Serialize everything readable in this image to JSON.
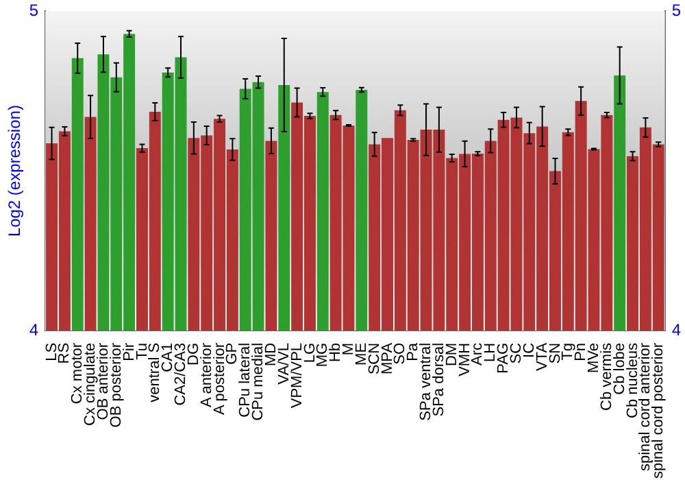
{
  "chart_data": {
    "type": "bar",
    "ylabel": "Log2 (expression)",
    "categories": [
      "LS",
      "RS",
      "Cx motor",
      "Cx cingulate",
      "OB anterior",
      "OB posterior",
      "Pir",
      "Tu",
      "ventral S",
      "CA1",
      "CA2/CA3",
      "DG",
      "A anterior",
      "A posterior",
      "GP",
      "CPu lateral",
      "CPu medial",
      "MD",
      "VA/VL",
      "VPM/VPL",
      "LG",
      "MG",
      "Hb",
      "M",
      "ME",
      "SCN",
      "MPA",
      "SO",
      "Pa",
      "SPa ventral",
      "SPa dorsal",
      "DM",
      "VMH",
      "Arc",
      "LH",
      "PAG",
      "SC",
      "IC",
      "VTA",
      "SN",
      "Tg",
      "Pn",
      "MVe",
      "Cb vermis",
      "Cb lobe",
      "Cb nucleus",
      "spinal cord anterior",
      "spinal cord posterior"
    ],
    "values": [
      4.586,
      4.624,
      4.853,
      4.669,
      4.865,
      4.793,
      4.929,
      4.571,
      4.685,
      4.808,
      4.856,
      4.603,
      4.611,
      4.663,
      4.567,
      4.757,
      4.778,
      4.594,
      4.769,
      4.714,
      4.672,
      4.747,
      4.675,
      4.642,
      4.754,
      4.583,
      4.603,
      4.69,
      4.597,
      4.629,
      4.629,
      4.54,
      4.553,
      4.554,
      4.594,
      4.66,
      4.667,
      4.618,
      4.639,
      4.499,
      4.621,
      4.719,
      4.568,
      4.675,
      4.799,
      4.546,
      4.636,
      4.583
    ],
    "errors": [
      0.05,
      0.014,
      0.047,
      0.067,
      0.056,
      0.045,
      0.01,
      0.012,
      0.028,
      0.014,
      0.065,
      0.05,
      0.029,
      0.01,
      0.034,
      0.031,
      0.019,
      0.04,
      0.146,
      0.045,
      0.008,
      0.013,
      0.014,
      0.002,
      0.007,
      0.037,
      null,
      0.016,
      0.004,
      0.081,
      0.07,
      0.012,
      0.04,
      0.006,
      0.037,
      0.023,
      0.032,
      0.033,
      0.062,
      0.04,
      0.01,
      0.044,
      0.002,
      0.008,
      0.089,
      0.014,
      0.03,
      0.007
    ],
    "colors": [
      "#b03434",
      "#b03434",
      "#2e9e2e",
      "#b03434",
      "#2e9e2e",
      "#2e9e2e",
      "#2e9e2e",
      "#b03434",
      "#b03434",
      "#2e9e2e",
      "#2e9e2e",
      "#b03434",
      "#b03434",
      "#b03434",
      "#b03434",
      "#2e9e2e",
      "#2e9e2e",
      "#b03434",
      "#2e9e2e",
      "#b03434",
      "#b03434",
      "#2e9e2e",
      "#b03434",
      "#b03434",
      "#2e9e2e",
      "#b03434",
      "#b03434",
      "#b03434",
      "#b03434",
      "#b03434",
      "#b03434",
      "#b03434",
      "#b03434",
      "#b03434",
      "#b03434",
      "#b03434",
      "#b03434",
      "#b03434",
      "#b03434",
      "#b03434",
      "#b03434",
      "#b03434",
      "#b03434",
      "#b03434",
      "#2e9e2e",
      "#b03434",
      "#b03434",
      "#b03434"
    ],
    "ylim": [
      4,
      5
    ],
    "yticks": [
      4,
      5
    ],
    "y2lim": [
      4,
      5
    ],
    "y2ticks": [
      4,
      5
    ],
    "grid": false,
    "legend": false
  }
}
